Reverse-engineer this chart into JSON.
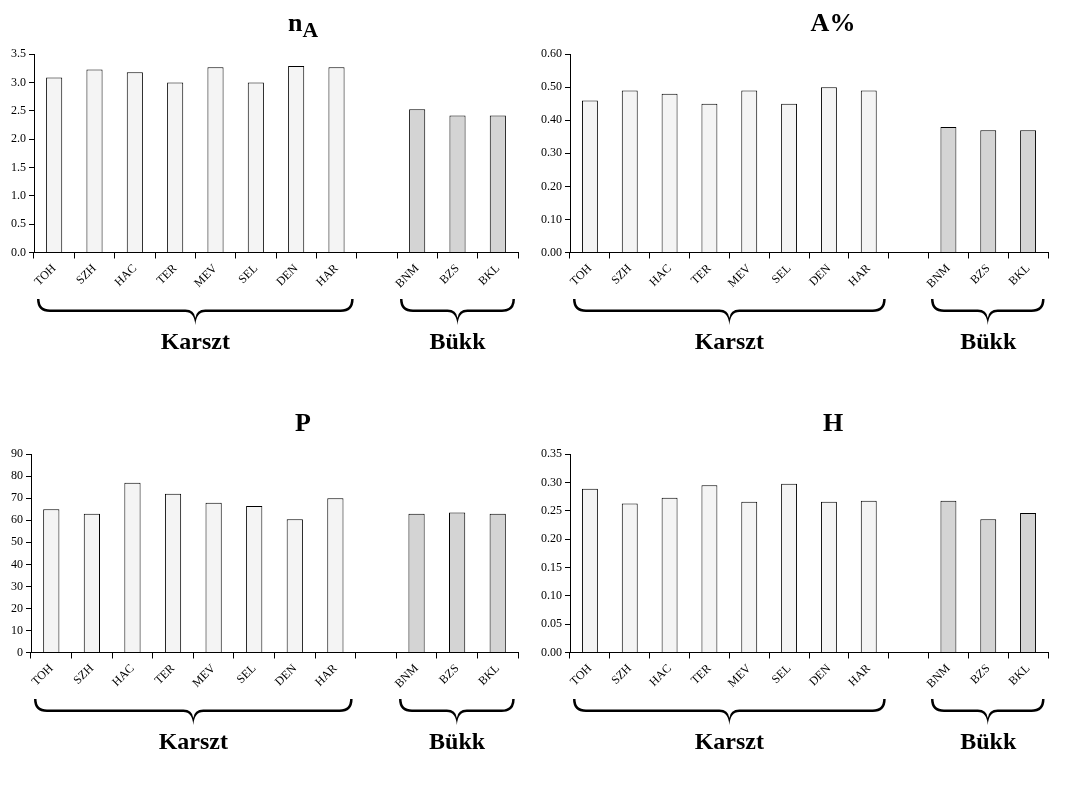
{
  "chart_data": [
    {
      "type": "bar",
      "title": "n$_{A}$",
      "categories": [
        "TOH",
        "SZH",
        "HAC",
        "TER",
        "MEV",
        "SEL",
        "DEN",
        "HAR",
        null,
        "BNM",
        "BZS",
        "BKL"
      ],
      "values": [
        3.09,
        3.23,
        3.18,
        3.0,
        3.27,
        3.0,
        3.29,
        3.27,
        null,
        2.53,
        2.42,
        2.42
      ],
      "colors": [
        "#f4f4f4",
        "#f4f4f4",
        "#f4f4f4",
        "#f4f4f4",
        "#f4f4f4",
        "#f4f4f4",
        "#f4f4f4",
        "#f4f4f4",
        "#f4f4f4",
        "#d4d4d4",
        "#d4d4d4",
        "#d4d4d4"
      ],
      "ylim": [
        0,
        3.5
      ],
      "yticks": [
        {
          "value": 0,
          "label": "0.0"
        },
        0.5,
        {
          "value": 1,
          "label": "1.0"
        },
        1.5,
        {
          "value": 2,
          "label": "2.0"
        },
        2.5,
        {
          "value": 3,
          "label": "3.0"
        },
        3.5
      ],
      "grid": false,
      "annotations": [
        "Karszt",
        "Bükk"
      ]
    },
    {
      "type": "bar",
      "title": "A%",
      "categories": [
        "TOH",
        "SZH",
        "HAC",
        "TER",
        "MEV",
        "SEL",
        "DEN",
        "HAR",
        null,
        "BNM",
        "BZS",
        "BKL"
      ],
      "values": [
        0.46,
        0.49,
        0.48,
        0.45,
        0.49,
        0.45,
        0.5,
        0.49,
        null,
        0.38,
        0.37,
        0.37
      ],
      "colors": [
        "#f4f4f4",
        "#f4f4f4",
        "#f4f4f4",
        "#f4f4f4",
        "#f4f4f4",
        "#f4f4f4",
        "#f4f4f4",
        "#f4f4f4",
        "#f4f4f4",
        "#d4d4d4",
        "#d4d4d4",
        "#d4d4d4"
      ],
      "ylim": [
        0,
        0.6
      ],
      "yticks": [
        {
          "value": 0,
          "label": "0.00"
        },
        {
          "value": 0.1,
          "label": "0.10"
        },
        {
          "value": 0.2,
          "label": "0.20"
        },
        {
          "value": 0.3,
          "label": "0.30"
        },
        {
          "value": 0.4,
          "label": "0.40"
        },
        {
          "value": 0.5,
          "label": "0.50"
        },
        {
          "value": 0.6,
          "label": "0.60"
        }
      ],
      "grid": false,
      "annotations": [
        "Karszt",
        "Bükk"
      ]
    },
    {
      "type": "bar",
      "title": "P",
      "categories": [
        "TOH",
        "SZH",
        "HAC",
        "TER",
        "MEV",
        "SEL",
        "DEN",
        "HAR",
        null,
        "BNM",
        "BZS",
        "BKL"
      ],
      "values": [
        65,
        63,
        77,
        72,
        68,
        66.5,
        60.5,
        70,
        null,
        63,
        63.5,
        63
      ],
      "colors": [
        "#f4f4f4",
        "#f4f4f4",
        "#f4f4f4",
        "#f4f4f4",
        "#f4f4f4",
        "#f4f4f4",
        "#f4f4f4",
        "#f4f4f4",
        "#f4f4f4",
        "#d4d4d4",
        "#d4d4d4",
        "#d4d4d4"
      ],
      "ylim": [
        0,
        90
      ],
      "yticks": [
        0,
        10,
        20,
        30,
        40,
        50,
        60,
        70,
        80,
        90
      ],
      "grid": false,
      "annotations": [
        "Karszt",
        "Bükk"
      ]
    },
    {
      "type": "bar",
      "title": "H",
      "categories": [
        "TOH",
        "SZH",
        "HAC",
        "TER",
        "MEV",
        "SEL",
        "DEN",
        "HAR",
        null,
        "BNM",
        "BZS",
        "BKL"
      ],
      "values": [
        0.289,
        0.263,
        0.273,
        0.295,
        0.266,
        0.298,
        0.266,
        0.268,
        null,
        0.268,
        0.235,
        0.246
      ],
      "colors": [
        "#f4f4f4",
        "#f4f4f4",
        "#f4f4f4",
        "#f4f4f4",
        "#f4f4f4",
        "#f4f4f4",
        "#f4f4f4",
        "#f4f4f4",
        "#f4f4f4",
        "#d4d4d4",
        "#d4d4d4",
        "#d4d4d4"
      ],
      "ylim": [
        0,
        0.35
      ],
      "yticks": [
        {
          "value": 0,
          "label": "0.00"
        },
        {
          "value": 0.05,
          "label": "0.05"
        },
        {
          "value": 0.1,
          "label": "0.10"
        },
        {
          "value": 0.15,
          "label": "0.15"
        },
        {
          "value": 0.2,
          "label": "0.20"
        },
        {
          "value": 0.25,
          "label": "0.25"
        },
        {
          "value": 0.3,
          "label": "0.30"
        },
        {
          "value": 0.35,
          "label": "0.35"
        }
      ],
      "grid": false,
      "annotations": [
        "Karszt",
        "Bükk"
      ]
    }
  ]
}
